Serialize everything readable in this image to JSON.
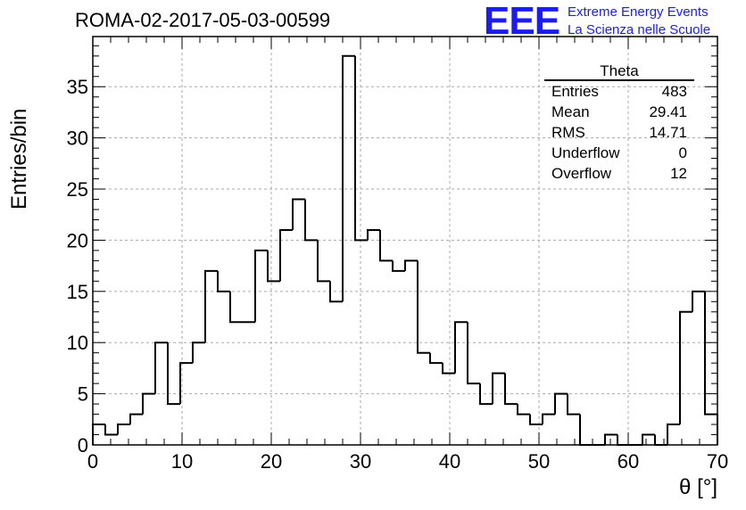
{
  "header": {
    "title": "ROMA-02-2017-05-03-00599",
    "logo": "EEE",
    "logo_line1": "Extreme Energy Events",
    "logo_line2": "La Scienza nelle Scuole"
  },
  "stats": {
    "title": "Theta",
    "rows": [
      {
        "label": "Entries",
        "value": "483"
      },
      {
        "label": "Mean",
        "value": "29.41"
      },
      {
        "label": "RMS",
        "value": "14.71"
      },
      {
        "label": "Underflow",
        "value": "0"
      },
      {
        "label": "Overflow",
        "value": "12"
      }
    ]
  },
  "colors": {
    "line": "#000000",
    "grid": "#aaaaaa",
    "logo": "#1c1cf0"
  },
  "chart_data": {
    "type": "bar",
    "subtype": "step-histogram",
    "title": "ROMA-02-2017-05-03-00599",
    "xlabel": "θ [°]",
    "ylabel": "Entries/bin",
    "xlim": [
      0,
      70
    ],
    "ylim": [
      0,
      39.9
    ],
    "x_ticks": [
      0,
      10,
      20,
      30,
      40,
      50,
      60,
      70
    ],
    "y_ticks": [
      0,
      5,
      10,
      15,
      20,
      25,
      30,
      35
    ],
    "grid": true,
    "legend_position": "top-right",
    "bin_edges_start": 0,
    "bin_width": 1.4,
    "values": [
      2,
      1,
      2,
      3,
      5,
      10,
      4,
      8,
      10,
      17,
      15,
      12,
      12,
      19,
      16,
      21,
      24,
      20,
      16,
      14,
      38,
      20,
      21,
      18,
      17,
      18,
      9,
      8,
      7,
      12,
      6,
      4,
      7,
      4,
      3,
      2,
      3,
      5,
      3,
      0,
      0,
      1,
      0,
      0,
      1,
      0,
      2,
      13,
      15,
      3
    ]
  }
}
